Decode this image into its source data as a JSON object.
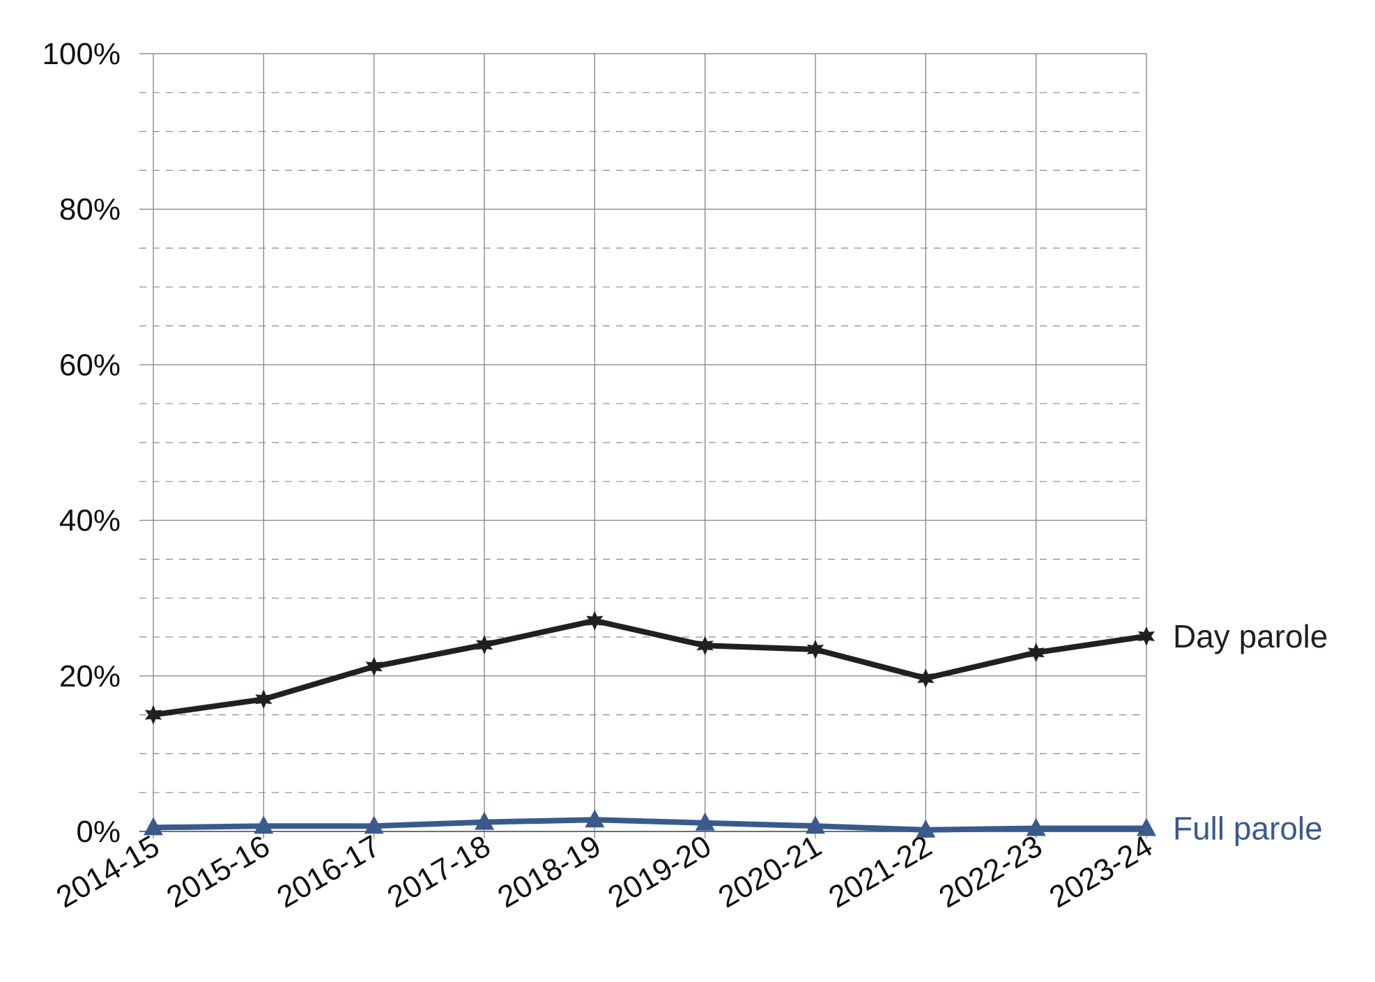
{
  "chart_data": {
    "type": "line",
    "title": "",
    "xlabel": "",
    "ylabel": "",
    "categories": [
      "2014-15",
      "2015-16",
      "2016-17",
      "2017-18",
      "2018-19",
      "2019-20",
      "2020-21",
      "2021-22",
      "2022-23",
      "2023-24"
    ],
    "ylim": [
      0,
      100
    ],
    "y_ticks": [
      "0%",
      "20%",
      "40%",
      "60%",
      "80%",
      "100%"
    ],
    "grid": "major solid, minor dashed",
    "series": [
      {
        "name": "Day parole",
        "color": "#231f20",
        "marker": "star",
        "values": [
          15,
          17,
          21.2,
          24,
          27.1,
          23.9,
          23.4,
          19.7,
          23,
          25.1
        ]
      },
      {
        "name": "Full parole",
        "color": "#3a5a8c",
        "marker": "triangle",
        "values": [
          0.5,
          0.7,
          0.7,
          1.2,
          1.5,
          1.1,
          0.7,
          0.2,
          0.4,
          0.4
        ]
      }
    ]
  }
}
